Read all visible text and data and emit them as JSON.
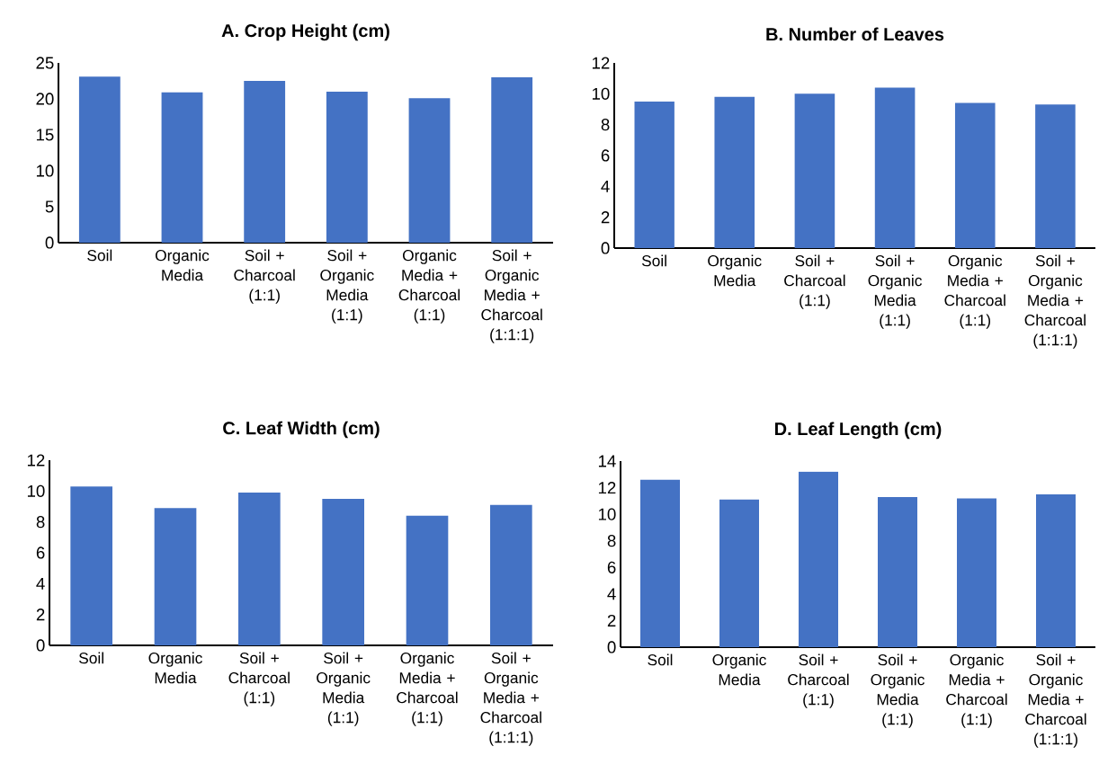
{
  "chart_data": [
    {
      "type": "bar",
      "title": "A. Crop Height (cm)",
      "categories": [
        "Soil",
        "Organic Media",
        "Soil + Charcoal (1:1)",
        "Soil + Organic Media (1:1)",
        "Organic Media + Charcoal (1:1)",
        "Soil + Organic Media + Charcoal (1:1:1)"
      ],
      "values": [
        23.1,
        20.9,
        22.5,
        21.0,
        20.1,
        23.0
      ],
      "color": "#4472c4",
      "ylim": [
        0,
        25
      ],
      "yticks": [
        0,
        5,
        10,
        15,
        20,
        25
      ],
      "grid": false
    },
    {
      "type": "bar",
      "title": "B. Number of Leaves",
      "categories": [
        "Soil",
        "Organic Media",
        "Soil + Charcoal (1:1)",
        "Soil + Organic Media (1:1)",
        "Organic Media + Charcoal (1:1)",
        "Soil + Organic Media + Charcoal (1:1:1)"
      ],
      "values": [
        9.5,
        9.8,
        10.0,
        10.4,
        9.4,
        9.3
      ],
      "color": "#4472c4",
      "ylim": [
        0,
        12
      ],
      "yticks": [
        0,
        2,
        4,
        6,
        8,
        10,
        12
      ],
      "grid": false
    },
    {
      "type": "bar",
      "title": "C. Leaf Width (cm)",
      "categories": [
        "Soil",
        "Organic Media",
        "Soil + Charcoal (1:1)",
        "Soil + Organic Media (1:1)",
        "Organic Media + Charcoal (1:1)",
        "Soil + Organic Media + Charcoal (1:1:1)"
      ],
      "values": [
        10.3,
        8.9,
        9.9,
        9.5,
        8.4,
        9.1
      ],
      "color": "#4472c4",
      "ylim": [
        0,
        12
      ],
      "yticks": [
        0,
        2,
        4,
        6,
        8,
        10,
        12
      ],
      "grid": false
    },
    {
      "type": "bar",
      "title": "D. Leaf Length (cm)",
      "categories": [
        "Soil",
        "Organic Media",
        "Soil + Charcoal (1:1)",
        "Soil + Organic Media (1:1)",
        "Organic Media + Charcoal (1:1)",
        "Soil + Organic Media + Charcoal (1:1:1)"
      ],
      "values": [
        12.6,
        11.1,
        13.2,
        11.3,
        11.2,
        11.5
      ],
      "color": "#4472c4",
      "ylim": [
        0,
        14
      ],
      "yticks": [
        0,
        2,
        4,
        6,
        8,
        10,
        12,
        14
      ],
      "grid": false
    }
  ]
}
